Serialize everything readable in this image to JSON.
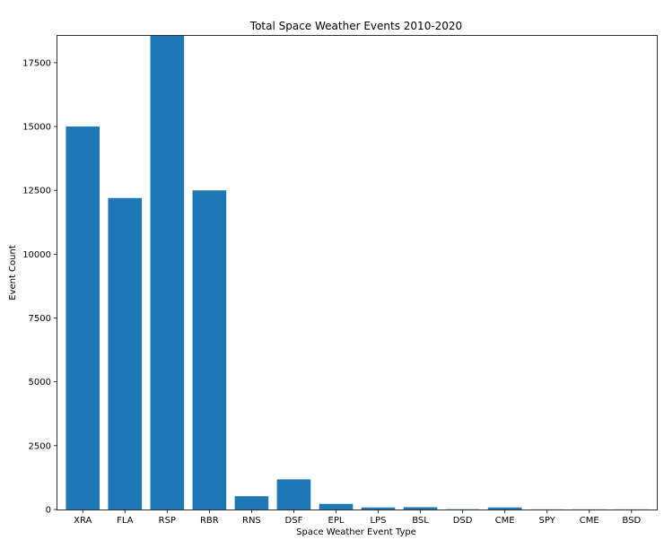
{
  "chart_data": {
    "type": "bar",
    "title": "Total Space Weather Events 2010-2020",
    "xlabel": "Space Weather Event Type",
    "ylabel": "Event Count",
    "categories": [
      "XRA",
      "FLA",
      "RSP",
      "RBR",
      "RNS",
      "DSF",
      "EPL",
      "LPS",
      "BSL",
      "DSD",
      "CME",
      "SPY",
      "CME",
      "BSD"
    ],
    "values": [
      15000,
      12200,
      18550,
      12500,
      520,
      1180,
      220,
      80,
      90,
      10,
      80,
      5,
      5,
      5
    ],
    "ylim": [
      0,
      18550
    ],
    "yticks": [
      0,
      2500,
      5000,
      7500,
      10000,
      12500,
      15000,
      17500
    ],
    "bar_color": "#1f77b4",
    "grid": false,
    "legend": "none"
  }
}
